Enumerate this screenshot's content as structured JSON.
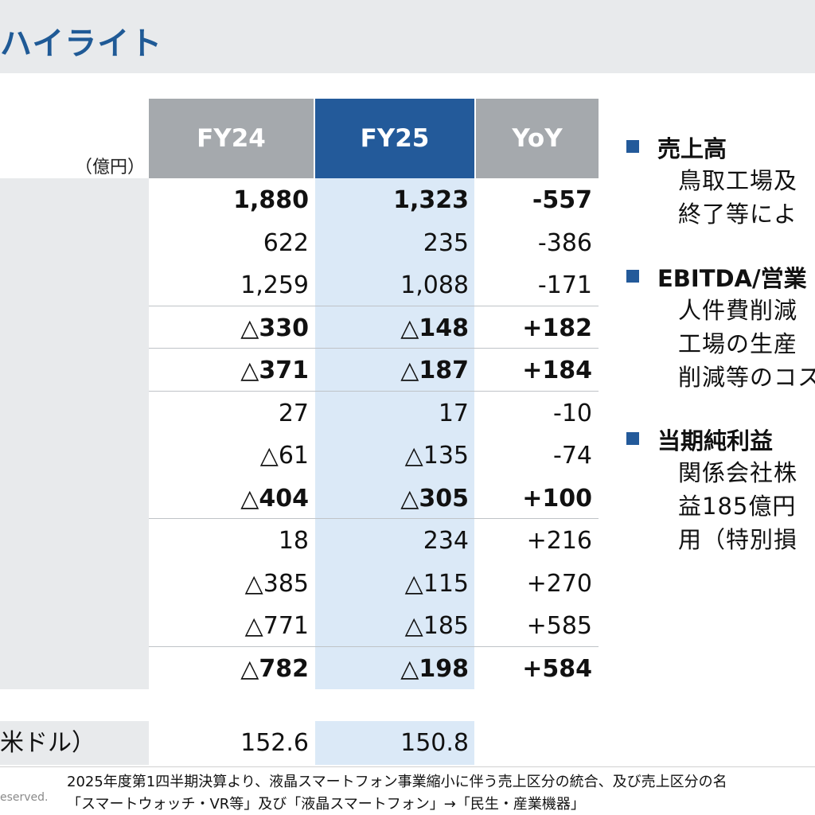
{
  "title": "ハイライト",
  "unit_label": "（億円）",
  "columns": [
    "FY24",
    "FY25",
    "YoY"
  ],
  "rows": [
    {
      "fy24": "1,880",
      "fy25": "1,323",
      "yoy": "-557",
      "bold": true
    },
    {
      "fy24": "622",
      "fy25": "235",
      "yoy": "-386",
      "bold": false
    },
    {
      "fy24": "1,259",
      "fy25": "1,088",
      "yoy": "-171",
      "bold": false
    },
    {
      "fy24": "△330",
      "fy25": "△148",
      "yoy": "+182",
      "bold": true
    },
    {
      "fy24": "△371",
      "fy25": "△187",
      "yoy": "+184",
      "bold": true
    },
    {
      "fy24": "27",
      "fy25": "17",
      "yoy": "-10",
      "bold": false
    },
    {
      "fy24": "△61",
      "fy25": "△135",
      "yoy": "-74",
      "bold": false
    },
    {
      "fy24": "△404",
      "fy25": "△305",
      "yoy": "+100",
      "bold": true
    },
    {
      "fy24": "18",
      "fy25": "234",
      "yoy": "+216",
      "bold": false
    },
    {
      "fy24": "△385",
      "fy25": "△115",
      "yoy": "+270",
      "bold": false
    },
    {
      "fy24": "△771",
      "fy25": "△185",
      "yoy": "+585",
      "bold": false
    },
    {
      "fy24": "△782",
      "fy25": "△198",
      "yoy": "+584",
      "bold": true
    }
  ],
  "fx": {
    "label": "米ドル）",
    "fy24": "152.6",
    "fy25": "150.8"
  },
  "highlights": [
    {
      "heading": "売上高",
      "lines": [
        "鳥取工場及",
        "終了等によ"
      ]
    },
    {
      "heading": "EBITDA/営業",
      "lines": [
        "人件費削減",
        "工場の生産",
        "削減等のコス"
      ]
    },
    {
      "heading": "当期純利益",
      "lines": [
        "関係会社株",
        "益185億円",
        "用（特別損"
      ]
    }
  ],
  "footnotes": [
    "2025年度第1四半期決算より、液晶スマートフォン事業縮小に伴う売上区分の統合、及び売上区分の名",
    "「スマートウォッチ・VR等」及び「液晶スマートフォン」→「民生・産業機器」"
  ],
  "copyright": "eserved.",
  "colors": {
    "accent": "#235a9a",
    "title": "#1f5a96",
    "header_gray": "#a5a9ad",
    "highlight_col": "#dbe9f7",
    "label_band": "#e8eaec"
  }
}
